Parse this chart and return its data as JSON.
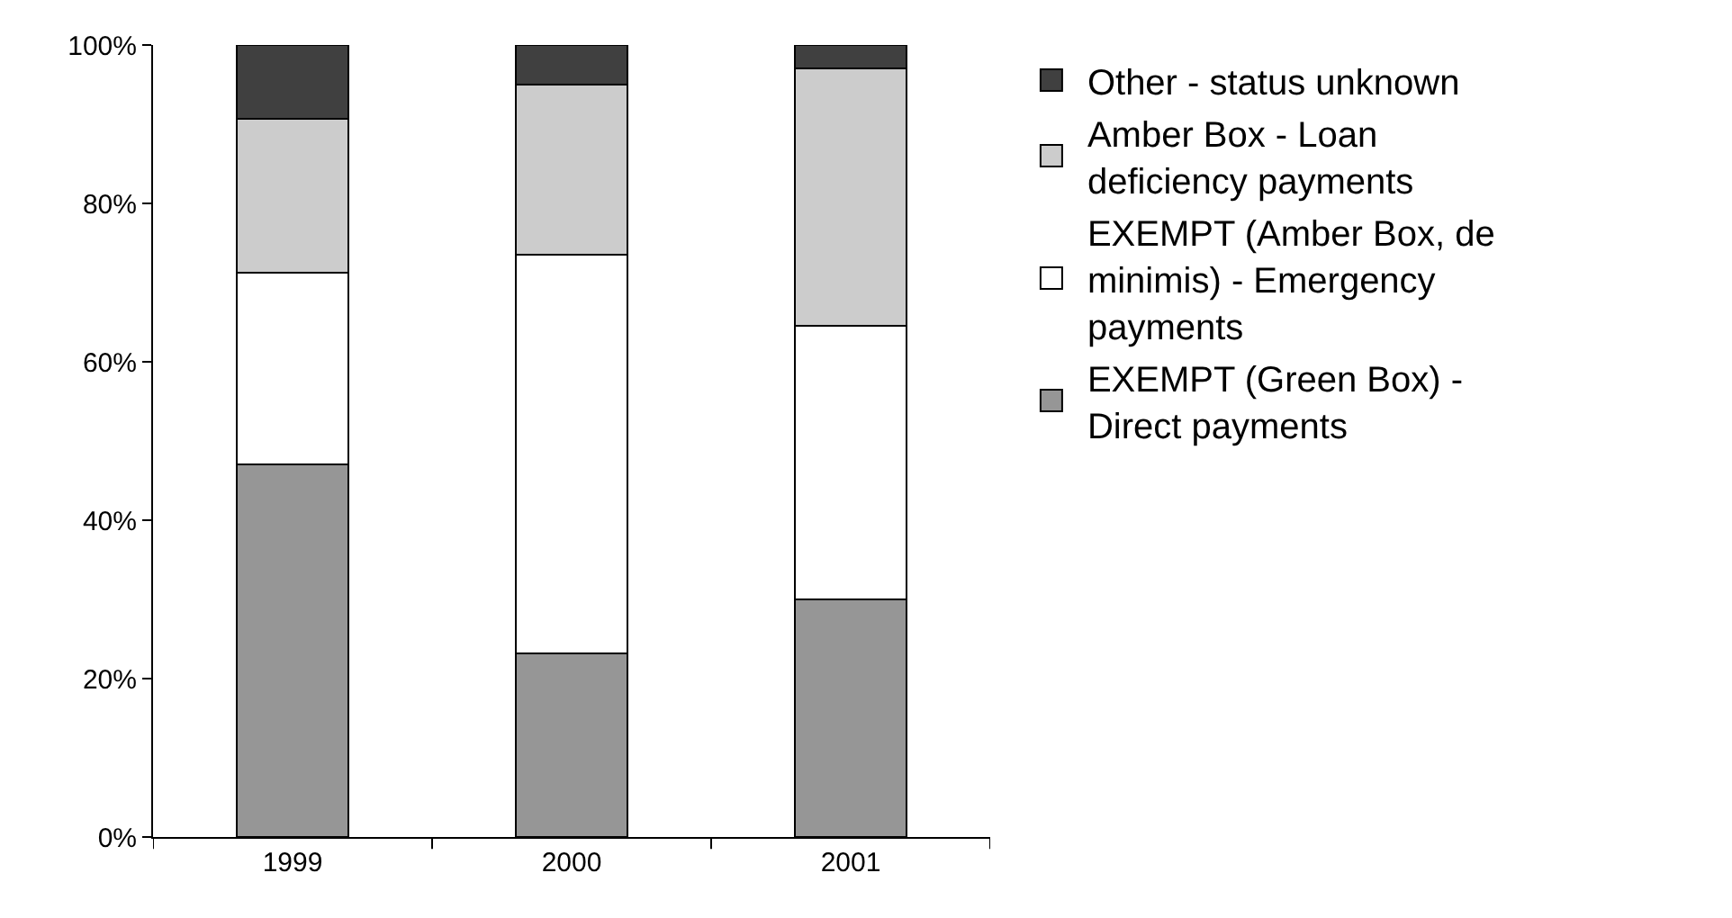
{
  "chart_data": {
    "type": "bar",
    "stacked": true,
    "categories": [
      "1999",
      "2000",
      "2001"
    ],
    "series": [
      {
        "name": "EXEMPT (Green Box) - Direct payments",
        "color": "#969696",
        "values": [
          47,
          23.2,
          30
        ]
      },
      {
        "name": "EXEMPT (Amber Box, de minimis) - Emergency payments",
        "color": "#ffffff",
        "values": [
          24.3,
          50.3,
          34.6
        ]
      },
      {
        "name": "Amber Box - Loan deficiency payments",
        "color": "#cccccc",
        "values": [
          19.4,
          21.5,
          32.4
        ]
      },
      {
        "name": "Other - status unknown",
        "color": "#404040",
        "values": [
          9.3,
          5,
          3
        ]
      }
    ],
    "ylim": [
      0,
      100
    ],
    "yticks": [
      {
        "value": 0,
        "label": "0%"
      },
      {
        "value": 20,
        "label": "20%"
      },
      {
        "value": 40,
        "label": "40%"
      },
      {
        "value": 60,
        "label": "60%"
      },
      {
        "value": 80,
        "label": "80%"
      },
      {
        "value": 100,
        "label": "100%"
      }
    ],
    "legend": "right"
  }
}
